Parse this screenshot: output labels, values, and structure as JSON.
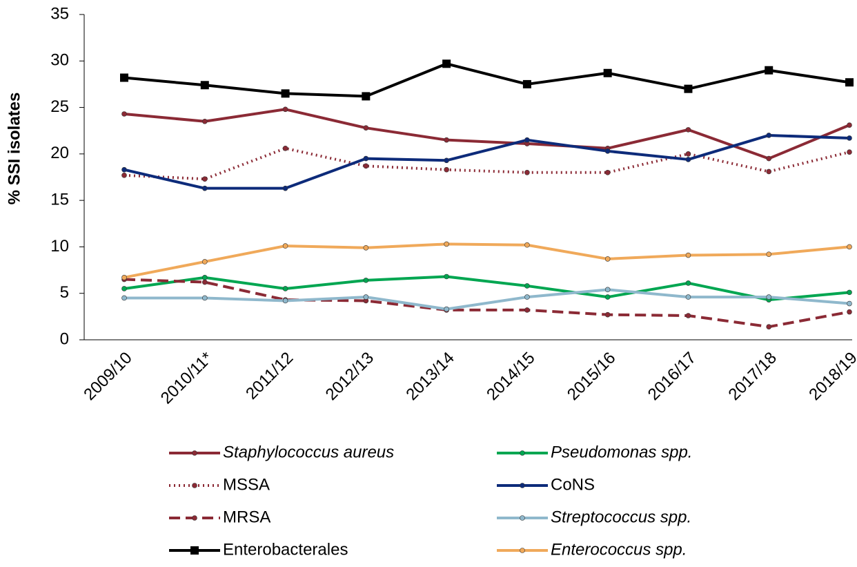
{
  "chart_data": {
    "type": "line",
    "y_label": "% SSI isolates",
    "categories": [
      "2009/10",
      "2010/11*",
      "2011/12",
      "2012/13",
      "2013/14",
      "2014/15",
      "2015/16",
      "2016/17",
      "2017/18",
      "2018/19"
    ],
    "ylim": [
      0,
      35
    ],
    "yticks": [
      0,
      5,
      10,
      15,
      20,
      25,
      30,
      35
    ],
    "series": [
      {
        "name": "Staphylococcus aureus",
        "italic": true,
        "color": "#8b2a35",
        "dash": "solid",
        "marker": "circle",
        "values": [
          24.3,
          23.5,
          24.8,
          22.8,
          21.5,
          21.1,
          20.6,
          22.6,
          19.5,
          23.1
        ]
      },
      {
        "name": "Pseudomonas spp.",
        "italic": true,
        "color": "#00a651",
        "dash": "solid",
        "marker": "circle",
        "values": [
          5.5,
          6.7,
          5.5,
          6.4,
          6.8,
          5.8,
          4.6,
          6.1,
          4.3,
          5.1
        ]
      },
      {
        "name": "MSSA",
        "italic": false,
        "color": "#8b2a35",
        "dash": "dotted",
        "marker": "circle",
        "values": [
          17.7,
          17.3,
          20.6,
          18.7,
          18.3,
          18.0,
          18.0,
          20.0,
          18.1,
          20.2
        ]
      },
      {
        "name": "CoNS",
        "italic": false,
        "color": "#0d2b7a",
        "dash": "solid",
        "marker": "circle",
        "values": [
          18.3,
          16.3,
          16.3,
          19.5,
          19.3,
          21.5,
          20.3,
          19.4,
          22.0,
          21.7
        ]
      },
      {
        "name": "MRSA",
        "italic": false,
        "color": "#8b2a35",
        "dash": "dashed",
        "marker": "circle",
        "values": [
          6.5,
          6.2,
          4.3,
          4.2,
          3.2,
          3.2,
          2.7,
          2.6,
          1.4,
          3.0
        ]
      },
      {
        "name": "Streptococcus spp.",
        "italic": true,
        "color": "#8fb8cc",
        "dash": "solid",
        "marker": "circle",
        "values": [
          4.5,
          4.5,
          4.2,
          4.6,
          3.3,
          4.6,
          5.4,
          4.6,
          4.6,
          3.9
        ]
      },
      {
        "name": "Enterobacterales",
        "italic": false,
        "color": "#000000",
        "dash": "solid",
        "marker": "square",
        "values": [
          28.2,
          27.4,
          26.5,
          26.2,
          29.7,
          27.5,
          28.7,
          27.0,
          29.0,
          27.7
        ]
      },
      {
        "name": "Enterococcus spp.",
        "italic": true,
        "color": "#f0a95a",
        "dash": "solid",
        "marker": "circle",
        "values": [
          6.7,
          8.4,
          10.1,
          9.9,
          10.3,
          10.2,
          8.7,
          9.1,
          9.2,
          10.0
        ]
      }
    ]
  }
}
